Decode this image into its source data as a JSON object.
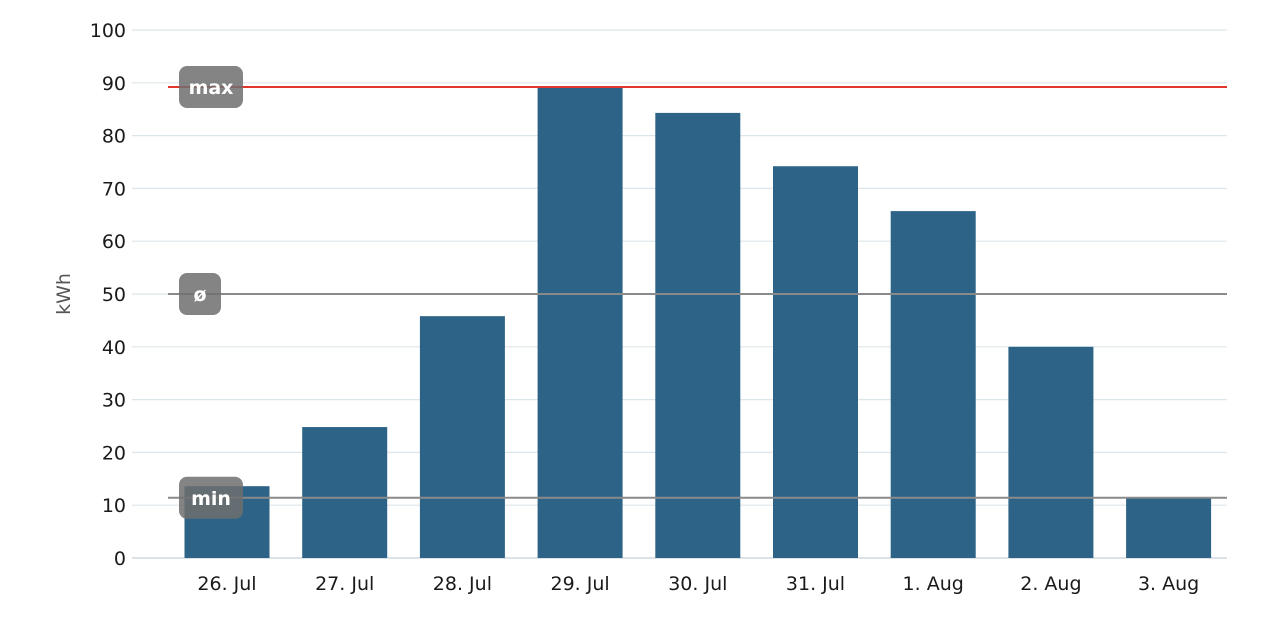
{
  "chart_data": {
    "type": "bar",
    "categories": [
      "26. Jul",
      "27. Jul",
      "28. Jul",
      "29. Jul",
      "30. Jul",
      "31. Jul",
      "1. Aug",
      "2. Aug",
      "3. Aug"
    ],
    "values": [
      13.6,
      24.8,
      45.8,
      89.2,
      84.3,
      74.2,
      65.7,
      40.0,
      11.4
    ],
    "title": "",
    "xlabel": "",
    "ylabel": "kWh",
    "ylim": [
      0,
      100
    ],
    "yticks": [
      0,
      10,
      20,
      30,
      40,
      50,
      60,
      70,
      80,
      90,
      100
    ],
    "grid": true,
    "bar_color": "#2d6386",
    "reference_lines": [
      {
        "label": "max",
        "value": 89.2,
        "color": "#e0362b"
      },
      {
        "label": "ø",
        "value": 50.0,
        "color": "#8a8a8a"
      },
      {
        "label": "min",
        "value": 11.4,
        "color": "#8a8a8a"
      }
    ]
  }
}
